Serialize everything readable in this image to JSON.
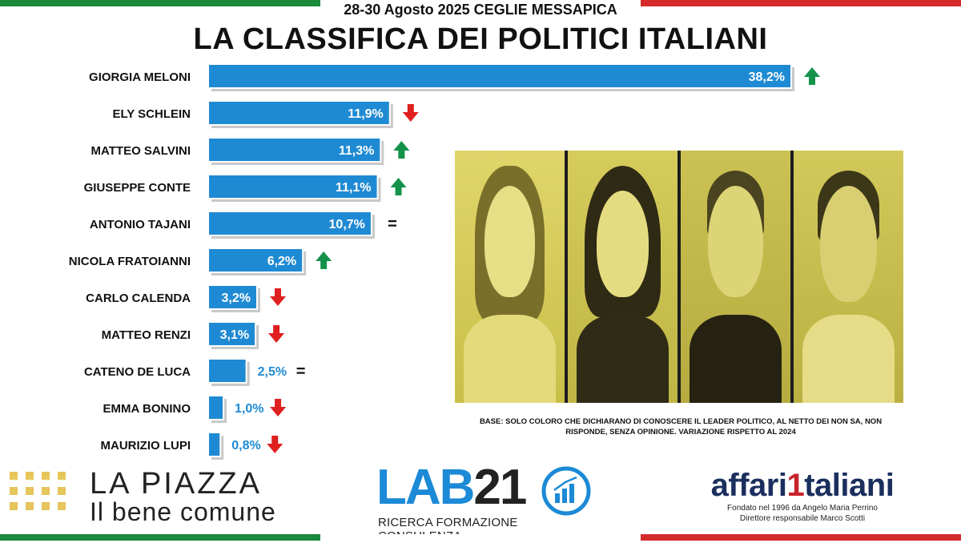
{
  "header": {
    "event": "28-30 Agosto 2025 CEGLIE MESSAPICA",
    "title": "LA CLASSIFICA DEI POLITICI ITALIANI"
  },
  "colors": {
    "bar": "#1f8ad4",
    "bar_shadow": "#c9c9c9",
    "up": "#15924a",
    "down": "#e01f1f",
    "flag_green": "#1a8a3c",
    "flag_red": "#d62b2b"
  },
  "chart_data": {
    "type": "bar",
    "orientation": "horizontal",
    "title": "LA CLASSIFICA DEI POLITICI ITALIANI",
    "unit": "%",
    "xlim": [
      0,
      40
    ],
    "categories": [
      "GIORGIA MELONI",
      "ELY SCHLEIN",
      "MATTEO SALVINI",
      "GIUSEPPE CONTE",
      "ANTONIO TAJANI",
      "NICOLA FRATOIANNI",
      "CARLO CALENDA",
      "MATTEO RENZI",
      "CATENO DE LUCA",
      "EMMA BONINO",
      "MAURIZIO LUPI"
    ],
    "values": [
      38.2,
      11.9,
      11.3,
      11.1,
      10.7,
      6.2,
      3.2,
      3.1,
      2.5,
      1.0,
      0.8
    ],
    "labels": [
      "38,2%",
      "11,9%",
      "11,3%",
      "11,1%",
      "10,7%",
      "6,2%",
      "3,2%",
      "3,1%",
      "2,5%",
      "1,0%",
      "0,8%"
    ],
    "trend": [
      "up",
      "down",
      "up",
      "up",
      "equal",
      "up",
      "down",
      "down",
      "equal",
      "down",
      "down"
    ],
    "trend_symbols": {
      "up": "▲",
      "down": "▼",
      "equal": "="
    }
  },
  "note": {
    "base": "BASE: SOLO COLORO CHE DICHIARANO DI CONOSCERE IL LEADER POLITICO, AL NETTO DEI  NON SA, NON RISPONDE, SENZA OPINIONE. VARIAZIONE RISPETTO AL 2024"
  },
  "logos": {
    "piazza_name": "LA PIAZZA",
    "piazza_sub": "Il bene comune",
    "lab_letters": "LAB",
    "lab_number": "21",
    "lab_tagline": "RICERCA FORMAZIONE CONSULENZA",
    "affari_a": "affari",
    "affari_one": "1",
    "affari_b": "taliani",
    "affari_line1": "Fondato nel 1996 da Angelo Maria Perrino",
    "affari_line2": "Direttore responsabile Marco Scotti"
  }
}
